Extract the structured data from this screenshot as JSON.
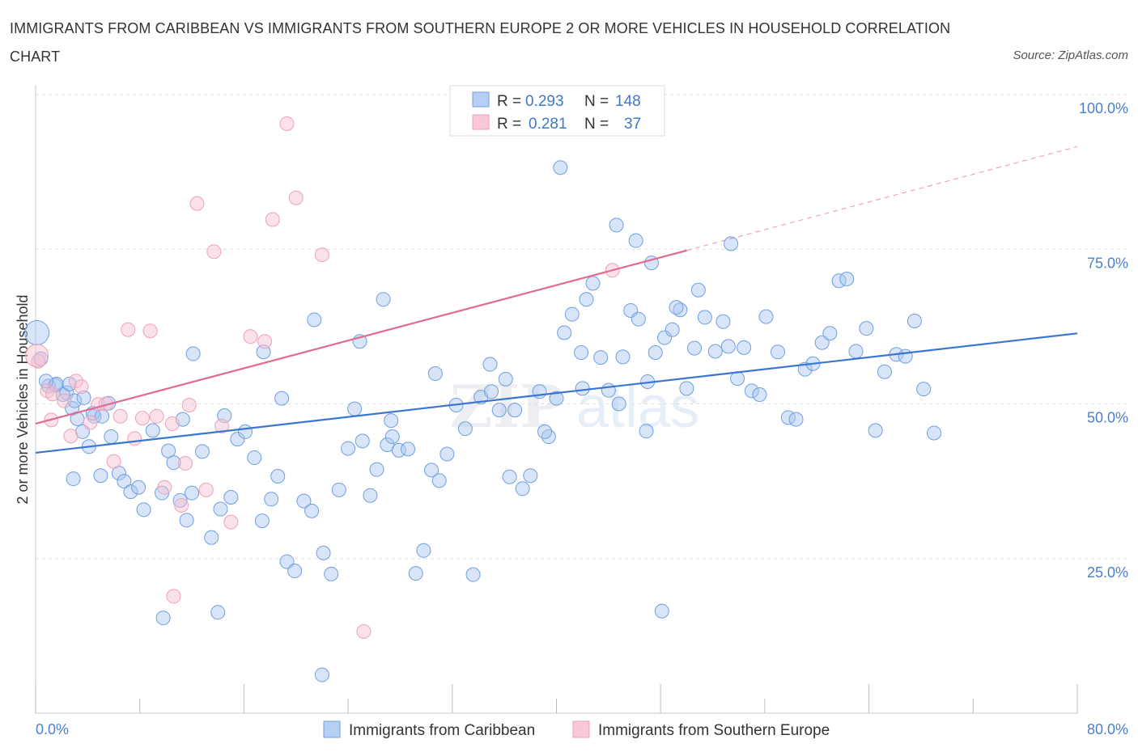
{
  "title": "IMMIGRANTS FROM CARIBBEAN VS IMMIGRANTS FROM SOUTHERN EUROPE 2 OR MORE VEHICLES IN HOUSEHOLD CORRELATION CHART",
  "source": "Source: ZipAtlas.com",
  "watermark": {
    "zip": "ZIP",
    "atlas": "atlas"
  },
  "colors": {
    "blue": "#6f9fe0",
    "blue_line": "#3a76cf",
    "pink": "#f0a0b8",
    "pink_line": "#e06a90",
    "tick": "#4a7fd0"
  },
  "legend": {
    "rows": [
      {
        "r_label": "R =",
        "r_value": "0.293",
        "n_label": "N =",
        "n_value": "148"
      },
      {
        "r_label": "R =",
        "r_value": "0.281",
        "n_label": "N =",
        "n_value": "37"
      }
    ]
  },
  "bottom_legend": [
    "Immigrants from Caribbean",
    "Immigrants from Southern Europe"
  ],
  "chart_data": {
    "type": "scatter",
    "title": "IMMIGRANTS FROM CARIBBEAN VS IMMIGRANTS FROM SOUTHERN EUROPE 2 OR MORE VEHICLES IN HOUSEHOLD CORRELATION CHART",
    "xlabel": "",
    "ylabel": "2 or more Vehicles in Household",
    "xlim": [
      0,
      80
    ],
    "ylim": [
      0,
      100
    ],
    "x_tick_labels": [
      "0.0%",
      "80.0%"
    ],
    "y_tick_labels": [
      "25.0%",
      "50.0%",
      "75.0%",
      "100.0%"
    ],
    "y_tick_values": [
      25,
      50,
      75,
      100
    ],
    "grid": true,
    "legend_position": "top-center",
    "series": [
      {
        "name": "Immigrants from Caribbean",
        "color": "#6f9fe0",
        "r": 0.293,
        "n": 148,
        "trend": {
          "x": [
            0,
            80
          ],
          "y": [
            42.1,
            61.4
          ]
        },
        "points": [
          [
            0.4,
            57.3
          ],
          [
            1.0,
            52.9
          ],
          [
            1.5,
            53.0
          ],
          [
            2.4,
            51.8
          ],
          [
            2.8,
            49.3
          ],
          [
            3.2,
            47.6
          ],
          [
            3.6,
            45.5
          ],
          [
            4.5,
            48.0
          ],
          [
            3.0,
            50.5
          ],
          [
            2.1,
            51.5
          ],
          [
            2.6,
            53.2
          ],
          [
            1.6,
            53.2
          ],
          [
            4.4,
            48.5
          ],
          [
            0.8,
            53.7
          ],
          [
            3.7,
            51.0
          ],
          [
            5.6,
            50.1
          ],
          [
            5.0,
            38.4
          ],
          [
            4.1,
            43.1
          ],
          [
            2.9,
            37.9
          ],
          [
            5.1,
            48.0
          ],
          [
            5.8,
            44.7
          ],
          [
            6.4,
            38.8
          ],
          [
            6.8,
            37.5
          ],
          [
            7.3,
            35.8
          ],
          [
            7.9,
            36.5
          ],
          [
            8.3,
            32.9
          ],
          [
            9.0,
            45.7
          ],
          [
            9.7,
            35.6
          ],
          [
            10.2,
            42.4
          ],
          [
            10.6,
            40.5
          ],
          [
            11.1,
            34.4
          ],
          [
            11.6,
            31.2
          ],
          [
            12.0,
            35.6
          ],
          [
            12.8,
            42.3
          ],
          [
            13.5,
            28.4
          ],
          [
            14.2,
            33.0
          ],
          [
            15.0,
            34.9
          ],
          [
            15.5,
            44.3
          ],
          [
            16.1,
            45.5
          ],
          [
            16.8,
            41.3
          ],
          [
            17.4,
            31.1
          ],
          [
            18.1,
            34.6
          ],
          [
            18.6,
            38.3
          ],
          [
            19.3,
            24.5
          ],
          [
            19.9,
            23.0
          ],
          [
            20.6,
            34.3
          ],
          [
            21.2,
            32.7
          ],
          [
            22.1,
            25.9
          ],
          [
            22.7,
            22.5
          ],
          [
            23.3,
            36.1
          ],
          [
            24.0,
            42.8
          ],
          [
            24.5,
            49.2
          ],
          [
            25.1,
            44.0
          ],
          [
            25.7,
            35.2
          ],
          [
            26.2,
            39.4
          ],
          [
            27.0,
            43.4
          ],
          [
            27.4,
            44.7
          ],
          [
            27.9,
            42.5
          ],
          [
            28.6,
            42.7
          ],
          [
            29.2,
            22.6
          ],
          [
            29.8,
            26.3
          ],
          [
            30.4,
            39.3
          ],
          [
            31.0,
            37.6
          ],
          [
            31.6,
            41.9
          ],
          [
            32.3,
            49.8
          ],
          [
            33.0,
            46.0
          ],
          [
            33.6,
            22.4
          ],
          [
            34.2,
            51.1
          ],
          [
            35.0,
            52.0
          ],
          [
            35.6,
            49.0
          ],
          [
            36.1,
            54.0
          ],
          [
            36.8,
            49.0
          ],
          [
            37.4,
            36.3
          ],
          [
            38.0,
            38.4
          ],
          [
            38.7,
            52.0
          ],
          [
            39.4,
            44.7
          ],
          [
            40.0,
            50.9
          ],
          [
            40.6,
            61.5
          ],
          [
            41.2,
            64.5
          ],
          [
            41.9,
            58.3
          ],
          [
            42.3,
            66.9
          ],
          [
            42.8,
            69.5
          ],
          [
            43.4,
            57.5
          ],
          [
            44.0,
            52.2
          ],
          [
            44.6,
            78.9
          ],
          [
            45.1,
            57.6
          ],
          [
            45.7,
            65.1
          ],
          [
            46.3,
            63.7
          ],
          [
            47.0,
            53.6
          ],
          [
            47.6,
            58.3
          ],
          [
            48.3,
            60.7
          ],
          [
            48.9,
            62.0
          ],
          [
            49.5,
            65.2
          ],
          [
            50.0,
            52.5
          ],
          [
            50.6,
            59.0
          ],
          [
            51.4,
            64.0
          ],
          [
            52.2,
            58.5
          ],
          [
            52.8,
            63.3
          ],
          [
            53.2,
            59.3
          ],
          [
            53.9,
            54.1
          ],
          [
            54.4,
            59.1
          ],
          [
            55.0,
            52.1
          ],
          [
            55.6,
            51.5
          ],
          [
            56.1,
            64.1
          ],
          [
            57.0,
            58.4
          ],
          [
            57.8,
            47.8
          ],
          [
            58.4,
            47.5
          ],
          [
            59.1,
            55.6
          ],
          [
            59.7,
            56.5
          ],
          [
            60.4,
            59.9
          ],
          [
            61.0,
            61.4
          ],
          [
            61.7,
            69.9
          ],
          [
            62.3,
            70.2
          ],
          [
            63.0,
            58.5
          ],
          [
            63.8,
            62.2
          ],
          [
            64.5,
            45.7
          ],
          [
            65.2,
            55.2
          ],
          [
            66.1,
            58.0
          ],
          [
            66.8,
            57.7
          ],
          [
            67.5,
            63.4
          ],
          [
            68.2,
            52.4
          ],
          [
            69.0,
            45.3
          ],
          [
            9.8,
            15.4
          ],
          [
            14.0,
            16.3
          ],
          [
            22.0,
            6.2
          ],
          [
            48.1,
            16.5
          ],
          [
            40.3,
            88.2
          ],
          [
            46.1,
            76.4
          ],
          [
            26.7,
            66.9
          ],
          [
            47.3,
            72.8
          ],
          [
            49.2,
            65.6
          ],
          [
            17.5,
            58.4
          ],
          [
            12.1,
            58.1
          ],
          [
            11.3,
            47.5
          ],
          [
            14.5,
            48.1
          ],
          [
            18.9,
            50.9
          ],
          [
            21.4,
            63.6
          ],
          [
            24.9,
            60.1
          ],
          [
            27.3,
            47.3
          ],
          [
            30.7,
            54.9
          ],
          [
            34.9,
            56.4
          ],
          [
            36.4,
            38.2
          ],
          [
            39.1,
            45.5
          ],
          [
            42.0,
            52.5
          ],
          [
            44.8,
            50.0
          ],
          [
            46.9,
            45.6
          ],
          [
            50.9,
            68.4
          ],
          [
            53.4,
            75.9
          ]
        ]
      },
      {
        "name": "Immigrants from Southern Europe",
        "color": "#f0a0b8",
        "r": 0.281,
        "n": 37,
        "trend": {
          "x": [
            0,
            50
          ],
          "y": [
            46.8,
            74.8
          ],
          "dashed_to": [
            80,
            91.6
          ]
        },
        "points": [
          [
            0.2,
            56.9
          ],
          [
            0.9,
            52.1
          ],
          [
            1.3,
            51.6
          ],
          [
            2.2,
            50.5
          ],
          [
            2.7,
            44.8
          ],
          [
            3.1,
            53.7
          ],
          [
            3.5,
            52.8
          ],
          [
            4.2,
            47.0
          ],
          [
            4.8,
            49.9
          ],
          [
            5.4,
            50.0
          ],
          [
            6.0,
            40.7
          ],
          [
            6.5,
            48.0
          ],
          [
            7.1,
            62.0
          ],
          [
            7.6,
            44.4
          ],
          [
            8.2,
            47.7
          ],
          [
            8.8,
            61.8
          ],
          [
            9.3,
            48.0
          ],
          [
            9.9,
            36.5
          ],
          [
            10.5,
            46.8
          ],
          [
            11.2,
            33.6
          ],
          [
            11.8,
            49.8
          ],
          [
            12.4,
            82.4
          ],
          [
            13.1,
            36.1
          ],
          [
            13.7,
            74.6
          ],
          [
            14.3,
            46.4
          ],
          [
            15.0,
            30.9
          ],
          [
            16.5,
            60.9
          ],
          [
            17.6,
            60.1
          ],
          [
            18.2,
            79.8
          ],
          [
            19.3,
            95.3
          ],
          [
            20.0,
            83.3
          ],
          [
            22.0,
            74.1
          ],
          [
            25.2,
            13.2
          ],
          [
            10.6,
            18.9
          ],
          [
            11.5,
            40.4
          ],
          [
            1.2,
            47.4
          ],
          [
            44.3,
            71.6
          ]
        ]
      }
    ]
  }
}
